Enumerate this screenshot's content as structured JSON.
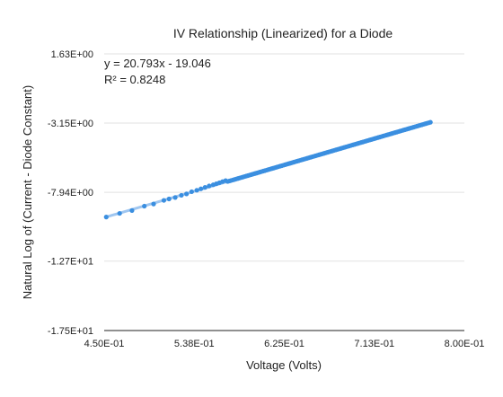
{
  "chart_data": {
    "type": "scatter",
    "title": "IV Relationship (Linearized) for a Diode",
    "xlabel": "Voltage (Volts)",
    "ylabel": "Natural Log of (Current - Diode Constant)",
    "xlim": [
      0.45,
      0.8
    ],
    "ylim": [
      -17.5,
      1.63
    ],
    "x_ticks": [
      "4.50E-01",
      "5.38E-01",
      "6.25E-01",
      "7.13E-01",
      "8.00E-01"
    ],
    "y_ticks": [
      "1.63E+00",
      "-3.15E+00",
      "-7.94E+00",
      "-1.27E+01",
      "-1.75E+01"
    ],
    "y_tick_values": [
      1.63,
      -3.15,
      -7.94,
      -12.7,
      -17.5
    ],
    "grid": "horizontal",
    "legend": "none",
    "series_color": "#3b8fe0",
    "trendline": {
      "slope": 20.793,
      "intercept": -19.046,
      "equation": "y = 20.793x - 19.046",
      "r_squared": "R² = 0.8248",
      "color": "#9fc6f0"
    },
    "dense_segment": {
      "x_start": 0.57,
      "x_end": 0.767,
      "count": 120
    },
    "series": [
      {
        "x": [
          0.452,
          0.465,
          0.477,
          0.489,
          0.498,
          0.508,
          0.513,
          0.519,
          0.525,
          0.53,
          0.535,
          0.54,
          0.544,
          0.548,
          0.552,
          0.556,
          0.559,
          0.562,
          0.565,
          0.568
        ],
        "y": [
          -9.65,
          -9.4,
          -9.2,
          -8.9,
          -8.75,
          -8.5,
          -8.4,
          -8.3,
          -8.15,
          -8.05,
          -7.9,
          -7.8,
          -7.7,
          -7.6,
          -7.5,
          -7.42,
          -7.35,
          -7.28,
          -7.2,
          -7.13
        ]
      }
    ]
  }
}
